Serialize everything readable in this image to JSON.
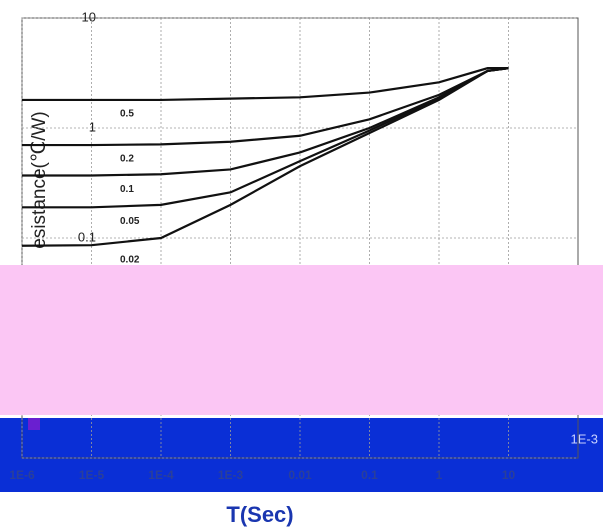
{
  "chart_data": {
    "type": "line",
    "y_label": "esistance(℃/W)",
    "x_label": "T(Sec)",
    "log_x": true,
    "log_y": true,
    "grid": true,
    "x": [
      1e-06,
      1e-05,
      0.0001,
      0.001,
      0.01,
      0.1,
      1,
      5,
      10
    ],
    "series": [
      {
        "name": "0.5",
        "color": "#111111",
        "values": [
          1.8,
          1.8,
          1.8,
          1.85,
          1.9,
          2.1,
          2.6,
          3.5,
          3.5
        ]
      },
      {
        "name": "0.2",
        "color": "#111111",
        "values": [
          0.7,
          0.7,
          0.71,
          0.75,
          0.85,
          1.2,
          2.0,
          3.3,
          3.5
        ]
      },
      {
        "name": "0.1",
        "color": "#111111",
        "values": [
          0.37,
          0.37,
          0.38,
          0.42,
          0.6,
          1.0,
          1.9,
          3.3,
          3.5
        ]
      },
      {
        "name": "0.05",
        "color": "#111111",
        "values": [
          0.19,
          0.19,
          0.2,
          0.26,
          0.5,
          0.95,
          1.85,
          3.3,
          3.5
        ]
      },
      {
        "name": "0.02",
        "color": "#111111",
        "values": [
          0.085,
          0.086,
          0.1,
          0.2,
          0.45,
          0.9,
          1.8,
          3.3,
          3.5
        ]
      }
    ],
    "xlim": [
      1e-06,
      100
    ],
    "ylim": [
      0.001,
      10
    ],
    "xticks": [
      {
        "value": 1e-06,
        "label": "1E-6"
      },
      {
        "value": 1e-05,
        "label": "1E-5"
      },
      {
        "value": 0.0001,
        "label": "1E-4"
      },
      {
        "value": 0.001,
        "label": "1E-3"
      },
      0.01,
      0.1,
      1,
      10
    ],
    "yticks": [
      {
        "value": 0.001,
        "label": "1E-3"
      },
      0.1,
      1,
      10
    ]
  }
}
